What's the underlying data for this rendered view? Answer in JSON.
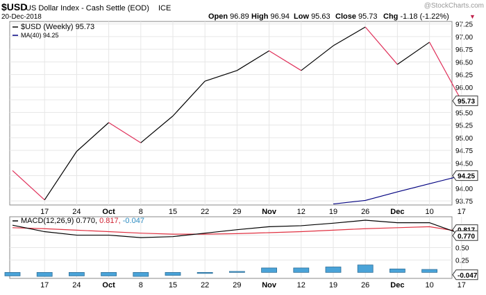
{
  "header": {
    "symbol": "$USD",
    "name": "US Dollar Index - Cash Settle (EOD)",
    "exchange": "ICE",
    "date": "20-Dec-2018",
    "watermark": "@StockCharts.com",
    "ohlc": [
      {
        "label": "Open",
        "value": "96.89"
      },
      {
        "label": "High",
        "value": "96.94"
      },
      {
        "label": "Low",
        "value": "95.63"
      },
      {
        "label": "Close",
        "value": "95.73"
      },
      {
        "label": "Chg",
        "value": "-1.18 (-1.22%)"
      }
    ],
    "down_marker": "▼"
  },
  "chart_data": [
    {
      "type": "line",
      "legend": [
        {
          "text": "$USD (Weekly) 95.73",
          "color": "#000000"
        },
        {
          "text": "MA(40) 94.25",
          "color": "#000080"
        }
      ],
      "x": [
        "",
        "17",
        "24",
        "Oct",
        "8",
        "15",
        "22",
        "29",
        "Nov",
        "12",
        "19",
        "26",
        "Dec",
        "10",
        "17"
      ],
      "series": [
        {
          "name": "$USD (Weekly)",
          "values": [
            94.35,
            93.77,
            94.73,
            95.3,
            94.9,
            95.43,
            96.12,
            96.33,
            96.72,
            96.33,
            96.82,
            97.19,
            96.45,
            96.89,
            95.73
          ],
          "up_color": "#000000",
          "down_color": "#e0305a"
        },
        {
          "name": "MA(40)",
          "values": [
            null,
            null,
            null,
            null,
            null,
            null,
            null,
            null,
            null,
            null,
            93.69,
            93.76,
            93.93,
            94.09,
            94.25
          ],
          "color": "#000080"
        }
      ],
      "ylim": [
        93.67,
        97.3
      ],
      "yticks": [
        "93.75",
        "94.00",
        "94.25",
        "94.50",
        "94.75",
        "95.00",
        "95.25",
        "95.50",
        "95.75",
        "96.00",
        "96.25",
        "96.50",
        "96.75",
        "97.00",
        "97.25"
      ],
      "last_labels": [
        "95.73",
        "94.25"
      ],
      "grid": true
    },
    {
      "type": "line",
      "legend": {
        "name": "MACD(12,26,9)",
        "v1": "0.770,",
        "v2": "0.817,",
        "v3": "-0.047"
      },
      "x": [
        "",
        "17",
        "24",
        "Oct",
        "8",
        "15",
        "22",
        "29",
        "Nov",
        "12",
        "19",
        "26",
        "Dec",
        "10",
        "17"
      ],
      "macd": [
        0.95,
        0.82,
        0.75,
        0.75,
        0.7,
        0.72,
        0.79,
        0.86,
        0.92,
        0.94,
        0.99,
        1.05,
        1.0,
        1.0,
        0.77
      ],
      "signal": [
        0.9,
        0.88,
        0.85,
        0.82,
        0.79,
        0.77,
        0.77,
        0.78,
        0.8,
        0.82,
        0.85,
        0.88,
        0.9,
        0.92,
        0.817
      ],
      "histogram": [
        -0.07,
        -0.08,
        -0.07,
        -0.07,
        -0.08,
        -0.06,
        -0.02,
        0.02,
        0.09,
        0.09,
        0.11,
        0.15,
        0.07,
        0.06,
        -0.047
      ],
      "ylim": [
        -0.12,
        1.12
      ],
      "yticks": [
        "0.25",
        "0.50",
        "0.75"
      ],
      "last_labels": [
        "0.817",
        "0.770",
        "-0.047"
      ],
      "colors": {
        "macd": "#000000",
        "signal": "#e03040",
        "histogram": "#4aa3d8"
      },
      "grid": true
    }
  ]
}
